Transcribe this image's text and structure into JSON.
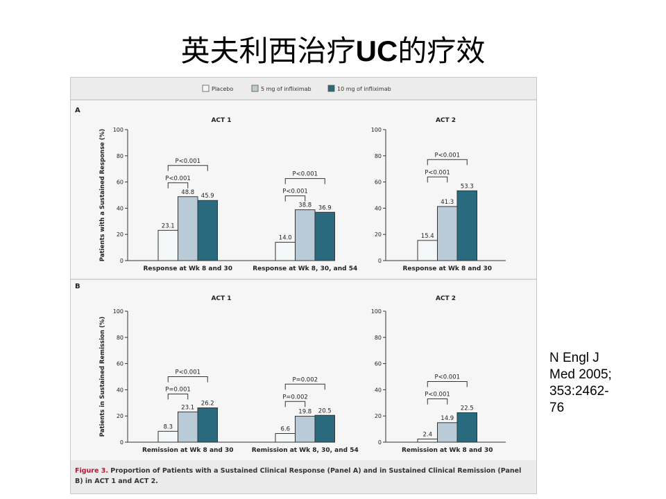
{
  "slide": {
    "title_cn1": "英夫利西治疗",
    "title_latin": "UC",
    "title_cn2": "的疗效",
    "citation_lines": [
      "N Engl J",
      "Med 2005;",
      "353:2462-",
      "76"
    ]
  },
  "figure": {
    "legend": [
      "Placebo",
      "5 mg of infliximab",
      "10 mg of infliximab"
    ],
    "caption_label": "Figure 3.",
    "caption_line1": " Proportion of Patients with a Sustained Clinical Response (Panel A) and in Sustained Clinical Remission (Panel",
    "caption_line2": "B) in ACT 1 and ACT 2.",
    "colors": {
      "placebo": "#f4f7f8",
      "dose5": "#b9cbd6",
      "dose10": "#2a6a7f",
      "text_red": "#c8102e"
    }
  },
  "chart_data": [
    {
      "panel": "A",
      "type": "bar",
      "ylabel": "Patients with a Sustained Response (%)",
      "ylim": [
        0,
        100
      ],
      "yticks": [
        0,
        20,
        40,
        60,
        80,
        100
      ],
      "series_names": [
        "Placebo",
        "5 mg of infliximab",
        "10 mg of infliximab"
      ],
      "subplots": [
        {
          "title": "ACT 1",
          "groups": [
            {
              "category": "Response at Wk 8 and 30",
              "values": [
                23.1,
                48.8,
                45.9
              ],
              "labels": [
                "23.1",
                "48.8",
                "45.9"
              ],
              "pvalues": [
                "P<0.001",
                "P<0.001"
              ]
            },
            {
              "category": "Response at Wk 8, 30, and 54",
              "values": [
                14.0,
                38.8,
                36.9
              ],
              "labels": [
                "14.0",
                "38.8",
                "36.9"
              ],
              "pvalues": [
                "P<0.001",
                "P<0.001"
              ]
            }
          ]
        },
        {
          "title": "ACT 2",
          "groups": [
            {
              "category": "Response at Wk 8 and 30",
              "values": [
                15.4,
                41.3,
                53.3
              ],
              "labels": [
                "15.4",
                "41.3",
                "53.3"
              ],
              "pvalues": [
                "P<0.001",
                "P<0.001"
              ]
            }
          ]
        }
      ]
    },
    {
      "panel": "B",
      "type": "bar",
      "ylabel": "Patients in Sustained Remission (%)",
      "ylim": [
        0,
        100
      ],
      "yticks": [
        0,
        20,
        40,
        60,
        80,
        100
      ],
      "series_names": [
        "Placebo",
        "5 mg of infliximab",
        "10 mg of infliximab"
      ],
      "subplots": [
        {
          "title": "ACT 1",
          "groups": [
            {
              "category": "Remission at Wk 8 and 30",
              "values": [
                8.3,
                23.1,
                26.2
              ],
              "labels": [
                "8.3",
                "23.1",
                "26.2"
              ],
              "pvalues": [
                "P=0.001",
                "P<0.001"
              ]
            },
            {
              "category": "Remission at Wk 8, 30, and 54",
              "values": [
                6.6,
                19.8,
                20.5
              ],
              "labels": [
                "6.6",
                "19.8",
                "20.5"
              ],
              "pvalues": [
                "P=0.002",
                "P=0.002"
              ]
            }
          ]
        },
        {
          "title": "ACT 2",
          "groups": [
            {
              "category": "Remission at Wk 8 and 30",
              "values": [
                2.4,
                14.9,
                22.5
              ],
              "labels": [
                "2.4",
                "14.9",
                "22.5"
              ],
              "pvalues": [
                "P<0.001",
                "P<0.001"
              ]
            }
          ]
        }
      ]
    }
  ]
}
